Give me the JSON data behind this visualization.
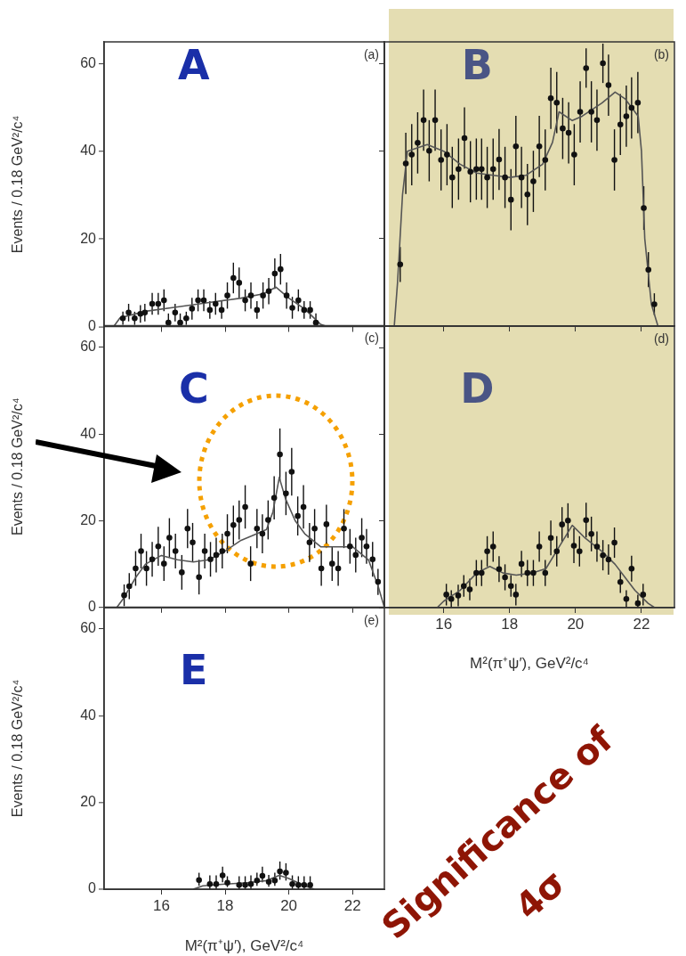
{
  "chart_data": [
    {
      "type": "scatter",
      "ylabel": "Events / 0.18 GeV²/c⁴",
      "annotations": [
        "A",
        "(a)"
      ],
      "xlim": [
        14.2,
        23.0
      ],
      "ylim": [
        0,
        65
      ],
      "xticks": [
        16,
        18,
        20,
        22
      ],
      "yticks": [
        0,
        20,
        40,
        60
      ],
      "tick_labels": "y",
      "marker": "circle",
      "series": [
        {
          "color": "#111111",
          "x": [
            14.79,
            14.97,
            15.16,
            15.34,
            15.48,
            15.71,
            15.9,
            16.08,
            16.22,
            16.43,
            16.59,
            16.78,
            16.96,
            17.15,
            17.33,
            17.52,
            17.7,
            17.89,
            18.07,
            18.26,
            18.44,
            18.63,
            18.81,
            19.0,
            19.19,
            19.37,
            19.56,
            19.74,
            19.93,
            20.11,
            20.3,
            20.48,
            20.67,
            20.85
          ],
          "values": [
            1.9,
            3.2,
            1.9,
            2.9,
            3.2,
            5.2,
            5.2,
            6.0,
            0.9,
            3.2,
            0.9,
            1.9,
            4.1,
            6.0,
            6.0,
            3.8,
            5.2,
            3.8,
            7.1,
            11.1,
            10.0,
            6.0,
            7.1,
            3.8,
            7.1,
            8.1,
            12.1,
            13.1,
            7.1,
            4.3,
            6.0,
            3.8,
            3.8,
            0.9
          ],
          "errors": [
            1.5,
            2,
            1.5,
            2,
            2,
            2.5,
            2.5,
            2.5,
            [
              0,
              3
            ],
            2,
            [
              0,
              3
            ],
            1.5,
            2.5,
            2.5,
            2.5,
            2,
            2.5,
            2,
            3,
            3.5,
            3.5,
            2.5,
            3,
            2,
            3,
            3,
            3.5,
            3.5,
            3,
            2.5,
            2.5,
            2,
            2,
            [
              0,
              3
            ]
          ]
        },
        {
          "type": "line",
          "color": "#555555",
          "marker": "none",
          "x": [
            14.5,
            14.7,
            15.5,
            16.5,
            17.5,
            18.5,
            19.2,
            19.6,
            20.0,
            20.5,
            21.0,
            21.2
          ],
          "values": [
            0,
            2,
            3.5,
            4.5,
            5.5,
            6.5,
            7.5,
            9,
            6.5,
            4,
            0.5,
            0
          ]
        }
      ]
    },
    {
      "type": "scatter",
      "annotations": [
        "B",
        "(b)"
      ],
      "xlim": [
        14.2,
        23.0
      ],
      "ylim": [
        0,
        65
      ],
      "xticks": [
        16,
        18,
        20,
        22
      ],
      "yticks": [
        0,
        20,
        40,
        60
      ],
      "tick_labels": false,
      "marker": "circle",
      "series": [
        {
          "color": "#111111",
          "x": [
            14.68,
            14.85,
            15.03,
            15.21,
            15.39,
            15.56,
            15.74,
            15.92,
            16.1,
            16.26,
            16.45,
            16.63,
            16.81,
            16.99,
            17.15,
            17.32,
            17.5,
            17.68,
            17.86,
            18.04,
            18.19,
            18.36,
            18.54,
            18.72,
            18.9,
            19.08,
            19.25,
            19.43,
            19.61,
            19.79,
            19.96,
            20.14,
            20.32,
            20.48,
            20.65,
            20.83,
            21.0,
            21.18,
            21.36,
            21.54,
            21.7,
            21.89,
            22.07,
            22.21,
            22.39
          ],
          "values": [
            14.1,
            37.2,
            39.2,
            41.9,
            47.1,
            40.1,
            47.1,
            38.0,
            39.2,
            34.0,
            35.9,
            43.0,
            35.3,
            35.9,
            35.9,
            34.0,
            35.9,
            38.1,
            34.0,
            28.9,
            41.1,
            34.0,
            30.1,
            33.1,
            41.1,
            38.0,
            52.1,
            51.1,
            45.2,
            44.2,
            39.2,
            49.0,
            59.0,
            49.0,
            47.1,
            60.1,
            55.1,
            38.0,
            46.1,
            48.0,
            49.9,
            51.1,
            27.0,
            12.9,
            5.0
          ],
          "errors": [
            4,
            7,
            7,
            7,
            7,
            7,
            7,
            7,
            7,
            7,
            7,
            7,
            7,
            7,
            7,
            7,
            7,
            7,
            7,
            7,
            7,
            7,
            7,
            7,
            7,
            7,
            7,
            7,
            7,
            7,
            7,
            7,
            4.5,
            7,
            7,
            4.5,
            7,
            7,
            7,
            7,
            7,
            7,
            5,
            4,
            2.5
          ]
        },
        {
          "type": "line",
          "color": "#555555",
          "marker": "none",
          "x": [
            14.5,
            14.6,
            14.75,
            14.9,
            15.5,
            16.0,
            16.5,
            17.0,
            17.5,
            18.0,
            18.5,
            19.0,
            19.3,
            19.5,
            19.9,
            20.2,
            20.8,
            21.2,
            21.5,
            21.9,
            22.0,
            22.1,
            22.3,
            22.5
          ],
          "values": [
            0,
            10,
            30,
            40,
            41.5,
            40,
            37,
            35,
            34.5,
            34,
            34.5,
            37,
            42,
            49,
            47,
            48,
            51,
            53.5,
            52,
            48,
            40,
            20,
            5,
            0
          ]
        }
      ]
    },
    {
      "type": "scatter",
      "ylabel": "Events / 0.18 GeV²/c⁴",
      "annotations": [
        "C",
        "(c)"
      ],
      "xlim": [
        14.2,
        23.0
      ],
      "ylim": [
        0,
        65
      ],
      "xticks": [
        16,
        18,
        20,
        22
      ],
      "yticks": [
        0,
        20,
        40,
        60
      ],
      "tick_labels": "y",
      "marker": "circle",
      "series": [
        {
          "color": "#111111",
          "x": [
            14.83,
            14.99,
            15.19,
            15.36,
            15.53,
            15.71,
            15.9,
            16.08,
            16.25,
            16.44,
            16.64,
            16.82,
            16.98,
            17.18,
            17.36,
            17.54,
            17.72,
            17.91,
            18.07,
            18.26,
            18.44,
            18.63,
            18.8,
            19.0,
            19.17,
            19.35,
            19.54,
            19.72,
            19.91,
            20.09,
            20.28,
            20.46,
            20.65,
            20.81,
            21.02,
            21.18,
            21.36,
            21.55,
            21.73,
            21.92,
            22.1,
            22.29,
            22.44,
            22.63,
            22.8
          ],
          "values": [
            2.8,
            4.9,
            9.0,
            13.0,
            9.0,
            11.1,
            14.1,
            10.1,
            16.1,
            13.0,
            8.1,
            18.2,
            15.0,
            7.0,
            13.0,
            11.1,
            12.1,
            13.0,
            17.0,
            19.0,
            20.2,
            23.2,
            10.1,
            18.2,
            17.0,
            20.2,
            25.3,
            35.3,
            26.3,
            31.3,
            21.1,
            23.2,
            15.0,
            18.2,
            9.0,
            19.2,
            10.1,
            9.0,
            18.2,
            14.1,
            12.1,
            16.1,
            14.1,
            11.1,
            5.9
          ],
          "errors": [
            2.5,
            3,
            4,
            4,
            4,
            4,
            4.5,
            4,
            4.5,
            4,
            4,
            4.5,
            4.5,
            4,
            4,
            4,
            4,
            4,
            4.5,
            4.5,
            4.5,
            5,
            4,
            4.5,
            4.5,
            4.5,
            5,
            6,
            5,
            5.5,
            4.5,
            5,
            4.5,
            4.5,
            4,
            4.5,
            4,
            4,
            4.5,
            4,
            4,
            4.5,
            4,
            4,
            3
          ]
        },
        {
          "type": "line",
          "color": "#555555",
          "marker": "none",
          "x": [
            14.6,
            14.8,
            15.2,
            15.5,
            16.0,
            16.5,
            17.0,
            17.5,
            18.0,
            18.5,
            19.0,
            19.3,
            19.5,
            19.7,
            19.9,
            20.2,
            20.5,
            21.0,
            21.5,
            22.0,
            22.5,
            22.8,
            23.0
          ],
          "values": [
            0,
            2,
            7,
            10,
            12,
            11,
            10.5,
            11,
            13,
            15.5,
            17,
            18,
            22,
            30,
            25,
            20,
            17,
            14,
            14,
            14,
            11,
            5,
            0
          ]
        }
      ]
    },
    {
      "type": "scatter",
      "xlabel": "M²(π⁺ψ′), GeV²/c⁴",
      "annotations": [
        "D",
        "(d)"
      ],
      "xlim": [
        14.2,
        23.0
      ],
      "ylim": [
        0,
        65
      ],
      "xticks": [
        16,
        18,
        20,
        22
      ],
      "yticks": [
        0,
        20,
        40,
        60
      ],
      "tick_labels": "x",
      "marker": "circle",
      "series": [
        {
          "color": "#111111",
          "x": [
            16.08,
            16.23,
            16.44,
            16.61,
            16.79,
            16.99,
            17.15,
            17.32,
            17.5,
            17.68,
            17.86,
            18.04,
            18.19,
            18.36,
            18.54,
            18.72,
            18.9,
            19.08,
            19.25,
            19.43,
            19.59,
            19.77,
            19.95,
            20.12,
            20.32,
            20.48,
            20.65,
            20.83,
            21.0,
            21.18,
            21.36,
            21.54,
            21.7,
            21.89,
            22.05
          ],
          "values": [
            3.0,
            2.0,
            2.8,
            5.0,
            4.2,
            8.0,
            8.0,
            13.0,
            14.1,
            8.9,
            7.0,
            5.0,
            3.0,
            10.1,
            8.0,
            8.0,
            14.1,
            8.0,
            16.1,
            13.0,
            19.2,
            20.1,
            14.3,
            13.0,
            20.2,
            17.0,
            14.1,
            12.1,
            11.1,
            15.0,
            5.9,
            2.0,
            9.0,
            1.0,
            3.0
          ],
          "errors": [
            2.5,
            2,
            2.5,
            2.5,
            2.5,
            3,
            3,
            3.5,
            3.5,
            3,
            3,
            2.5,
            2.5,
            3,
            3,
            3,
            3.5,
            3,
            4,
            3.5,
            4,
            4,
            4,
            3.5,
            4,
            4,
            3.5,
            3.5,
            3.5,
            3.5,
            2.5,
            2,
            3,
            [
              0,
              3
            ],
            2.5
          ]
        },
        {
          "type": "line",
          "color": "#555555",
          "marker": "none",
          "x": [
            15.8,
            16.0,
            16.5,
            17.0,
            17.4,
            17.8,
            18.2,
            18.7,
            19.1,
            19.5,
            19.9,
            20.3,
            20.8,
            21.2,
            21.5,
            21.8,
            22.2,
            22.4
          ],
          "values": [
            0,
            1.5,
            4,
            8,
            9.5,
            8,
            7.5,
            8,
            9,
            14,
            19,
            16,
            13,
            10,
            7,
            4,
            1,
            0
          ]
        }
      ]
    },
    {
      "type": "scatter",
      "xlabel": "M²(π⁺ψ′), GeV²/c⁴",
      "ylabel": "Events / 0.18 GeV²/c⁴",
      "annotations": [
        "E",
        "(e)",
        "Significance of",
        "4σ"
      ],
      "xlim": [
        14.2,
        23.0
      ],
      "ylim": [
        0,
        65
      ],
      "xticks": [
        16,
        18,
        20,
        22
      ],
      "yticks": [
        0,
        20,
        40,
        60
      ],
      "marker": "circle",
      "series": [
        {
          "color": "#111111",
          "x": [
            17.18,
            17.52,
            17.72,
            17.92,
            18.07,
            18.44,
            18.63,
            18.81,
            19.0,
            19.17,
            19.37,
            19.56,
            19.72,
            19.91,
            20.11,
            20.3,
            20.48,
            20.67
          ],
          "values": [
            2.1,
            1.2,
            1.2,
            3.2,
            1.5,
            1.0,
            1.0,
            1.2,
            2.0,
            3.1,
            1.7,
            2.0,
            4.1,
            3.8,
            1.2,
            1.0,
            1.0,
            1.0
          ],
          "errors": [
            [
              0.8,
              3.8
            ],
            [
              0,
              3.2
            ],
            [
              0,
              3.2
            ],
            [
              1.6,
              5.2
            ],
            [
              0.5,
              3.0
            ],
            [
              0,
              3.0
            ],
            [
              0,
              3.0
            ],
            [
              0,
              3.2
            ],
            [
              0.8,
              3.8
            ],
            [
              1.6,
              5.2
            ],
            [
              0.6,
              3.3
            ],
            [
              0.8,
              3.8
            ],
            [
              2.2,
              6.4
            ],
            [
              2.0,
              6.0
            ],
            [
              0,
              3.2
            ],
            [
              0,
              3.0
            ],
            [
              0,
              3.0
            ],
            [
              0,
              3.0
            ]
          ]
        },
        {
          "type": "line",
          "color": "#555555",
          "marker": "none",
          "x": [
            17.0,
            17.3,
            18.0,
            18.7,
            19.3,
            19.7,
            20.0,
            20.5,
            20.8
          ],
          "values": [
            0,
            0.8,
            1.2,
            1.5,
            2,
            3.2,
            2.5,
            0.8,
            0
          ]
        }
      ]
    }
  ]
}
